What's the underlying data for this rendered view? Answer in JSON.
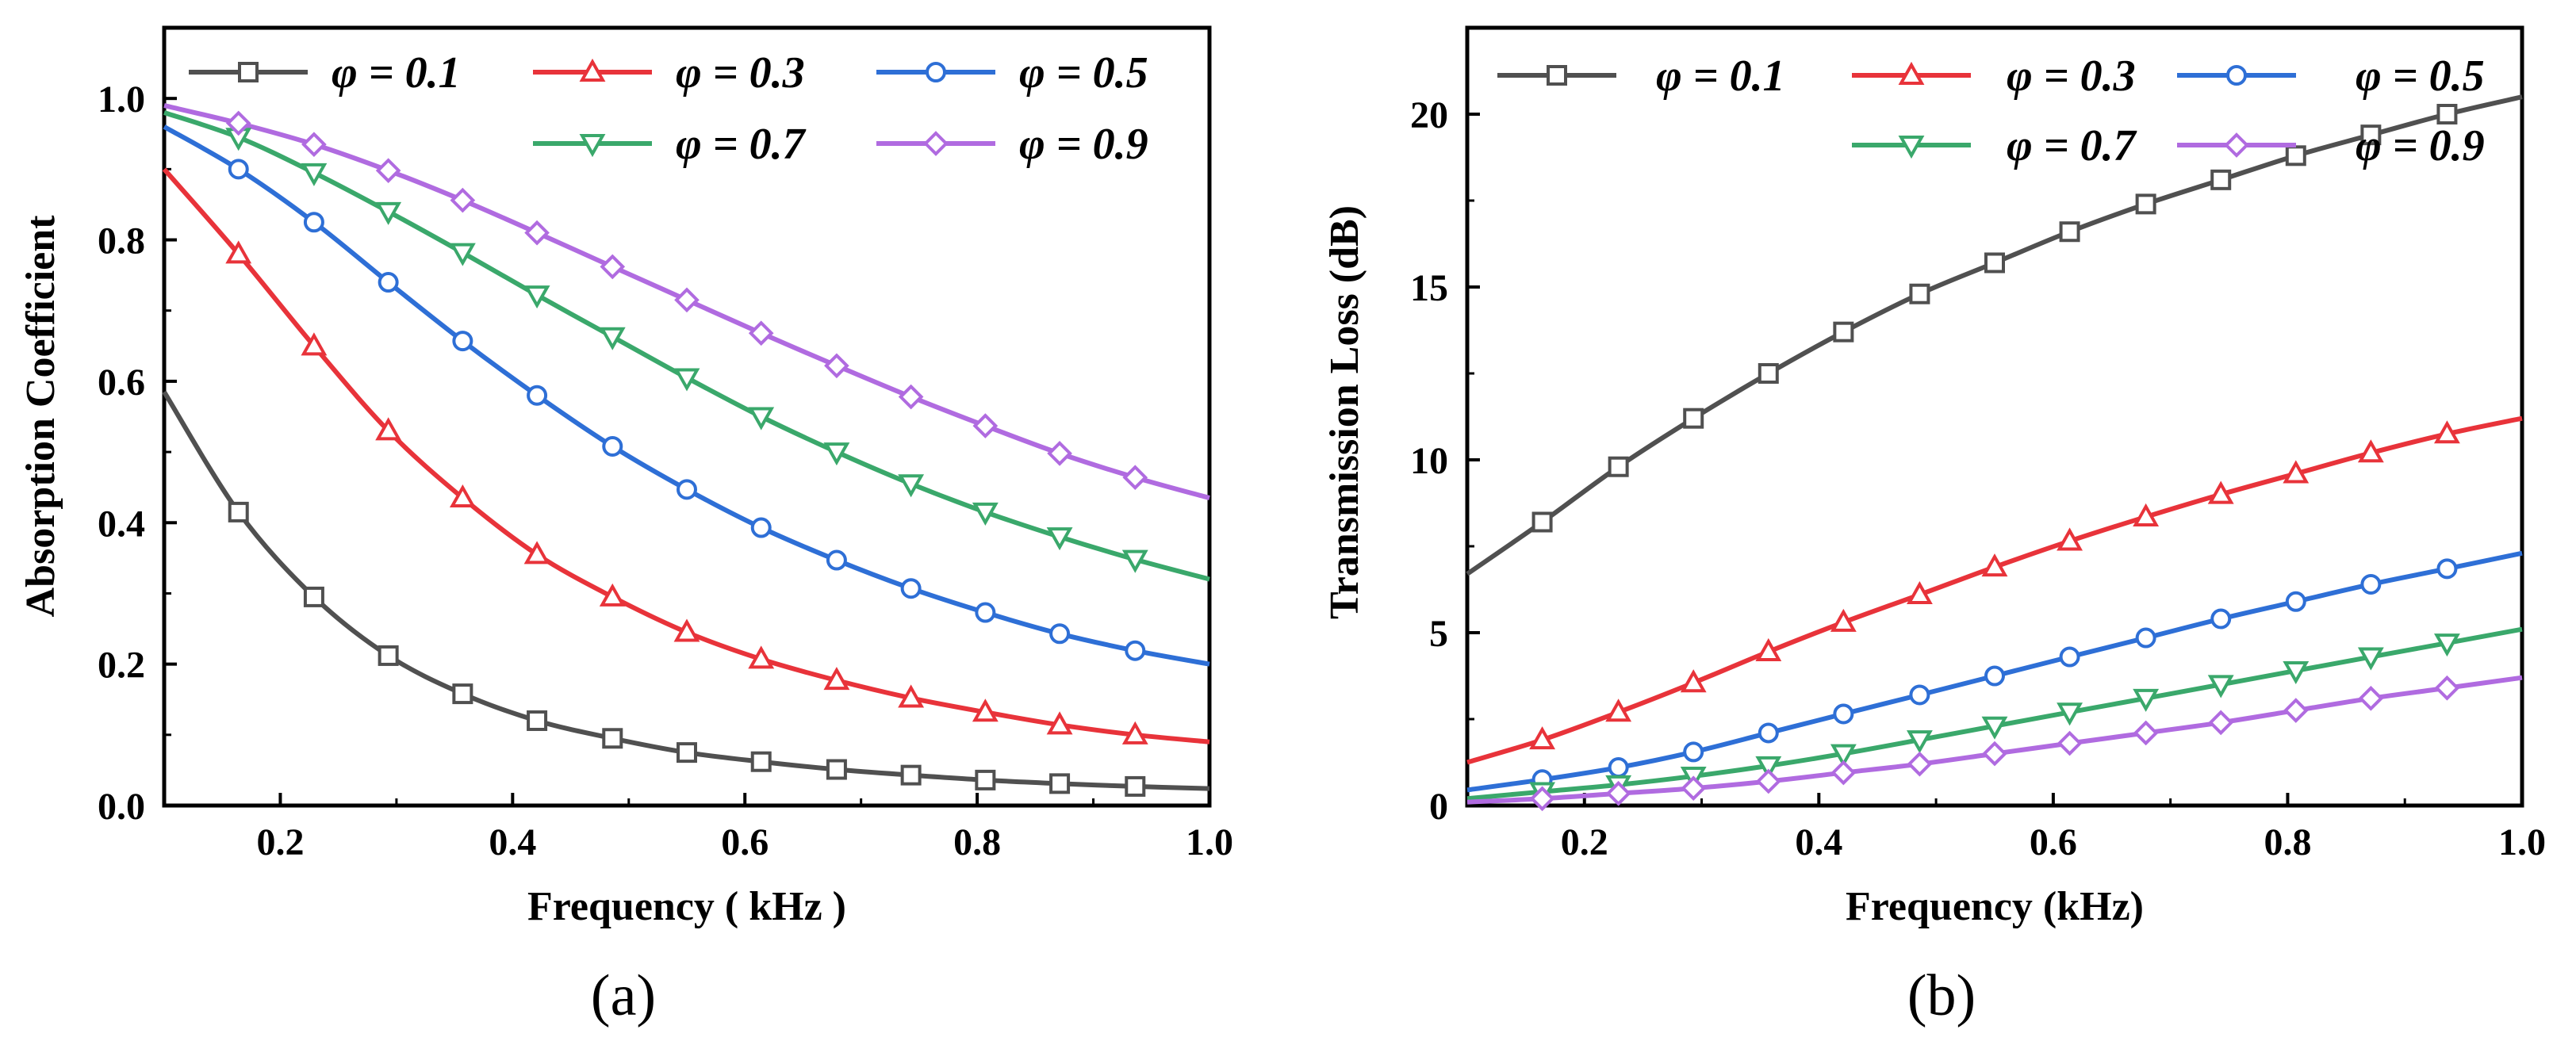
{
  "chart_data": [
    {
      "id": "a",
      "type": "line",
      "caption": "(a)",
      "xlabel": "Frequency ( kHz )",
      "ylabel": "Absorption Coefficient",
      "xlim": [
        0.1,
        1.0
      ],
      "ylim": [
        0.0,
        1.1
      ],
      "xticks": [
        0.2,
        0.4,
        0.6,
        0.8,
        1.0
      ],
      "yticks": [
        0.0,
        0.2,
        0.4,
        0.6,
        0.8,
        1.0
      ],
      "xtick_labels": [
        "0.2",
        "0.4",
        "0.6",
        "0.8",
        "1.0"
      ],
      "ytick_labels": [
        "0.0",
        "0.2",
        "0.4",
        "0.6",
        "0.8",
        "1.0"
      ],
      "grid": false,
      "legend_position": "top",
      "x": [
        0.1,
        0.164,
        0.229,
        0.293,
        0.357,
        0.421,
        0.486,
        0.55,
        0.614,
        0.679,
        0.743,
        0.807,
        0.871,
        0.936,
        1.0
      ],
      "series": [
        {
          "name": "φ = 0.1",
          "color": "#505050",
          "marker": "square",
          "values": [
            0.585,
            0.415,
            0.295,
            0.212,
            0.158,
            0.12,
            0.095,
            0.075,
            0.062,
            0.051,
            0.043,
            0.036,
            0.031,
            0.027,
            0.024
          ]
        },
        {
          "name": "φ = 0.3",
          "color": "#e8333a",
          "marker": "triangle-up",
          "values": [
            0.9,
            0.78,
            0.65,
            0.53,
            0.435,
            0.355,
            0.295,
            0.245,
            0.207,
            0.177,
            0.152,
            0.132,
            0.114,
            0.1,
            0.09
          ]
        },
        {
          "name": "φ = 0.5",
          "color": "#2e6fd6",
          "marker": "circle",
          "values": [
            0.96,
            0.9,
            0.825,
            0.74,
            0.657,
            0.58,
            0.508,
            0.447,
            0.393,
            0.347,
            0.307,
            0.273,
            0.243,
            0.219,
            0.2
          ]
        },
        {
          "name": "φ = 0.7",
          "color": "#3aa86b",
          "marker": "triangle-down",
          "values": [
            0.98,
            0.945,
            0.895,
            0.84,
            0.782,
            0.722,
            0.663,
            0.605,
            0.55,
            0.5,
            0.455,
            0.415,
            0.38,
            0.348,
            0.32
          ]
        },
        {
          "name": "φ = 0.9",
          "color": "#b06be0",
          "marker": "diamond",
          "values": [
            0.99,
            0.965,
            0.935,
            0.898,
            0.856,
            0.81,
            0.762,
            0.715,
            0.668,
            0.622,
            0.578,
            0.537,
            0.498,
            0.464,
            0.435
          ]
        }
      ]
    },
    {
      "id": "b",
      "type": "line",
      "caption": "(b)",
      "xlabel": "Frequency (kHz)",
      "ylabel": "Transmission Loss (dB)",
      "xlim": [
        0.1,
        1.0
      ],
      "ylim": [
        0,
        22.5
      ],
      "xticks": [
        0.2,
        0.4,
        0.6,
        0.8,
        1.0
      ],
      "yticks": [
        0,
        5,
        10,
        15,
        20
      ],
      "xtick_labels": [
        "0.2",
        "0.4",
        "0.6",
        "0.8",
        "1.0"
      ],
      "ytick_labels": [
        "0",
        "5",
        "10",
        "15",
        "20"
      ],
      "grid": false,
      "legend_position": "top",
      "x": [
        0.1,
        0.164,
        0.229,
        0.293,
        0.357,
        0.421,
        0.486,
        0.55,
        0.614,
        0.679,
        0.743,
        0.807,
        0.871,
        0.936,
        1.0
      ],
      "series": [
        {
          "name": "φ = 0.1",
          "color": "#505050",
          "marker": "square",
          "values": [
            6.7,
            8.2,
            9.8,
            11.2,
            12.5,
            13.7,
            14.8,
            15.7,
            16.6,
            17.4,
            18.1,
            18.8,
            19.4,
            20.0,
            20.5
          ]
        },
        {
          "name": "φ = 0.3",
          "color": "#e8333a",
          "marker": "triangle-up",
          "values": [
            1.25,
            1.9,
            2.7,
            3.55,
            4.45,
            5.3,
            6.1,
            6.9,
            7.65,
            8.35,
            9.0,
            9.6,
            10.2,
            10.75,
            11.2
          ]
        },
        {
          "name": "φ = 0.5",
          "color": "#2e6fd6",
          "marker": "circle",
          "values": [
            0.45,
            0.75,
            1.1,
            1.55,
            2.1,
            2.65,
            3.2,
            3.75,
            4.3,
            4.85,
            5.4,
            5.9,
            6.4,
            6.85,
            7.3
          ]
        },
        {
          "name": "φ = 0.7",
          "color": "#3aa86b",
          "marker": "triangle-down",
          "values": [
            0.2,
            0.4,
            0.6,
            0.85,
            1.15,
            1.5,
            1.9,
            2.3,
            2.7,
            3.1,
            3.5,
            3.9,
            4.3,
            4.7,
            5.1
          ]
        },
        {
          "name": "φ = 0.9",
          "color": "#b06be0",
          "marker": "diamond",
          "values": [
            0.1,
            0.2,
            0.35,
            0.5,
            0.7,
            0.95,
            1.2,
            1.5,
            1.8,
            2.1,
            2.4,
            2.75,
            3.1,
            3.4,
            3.7
          ]
        }
      ]
    }
  ]
}
